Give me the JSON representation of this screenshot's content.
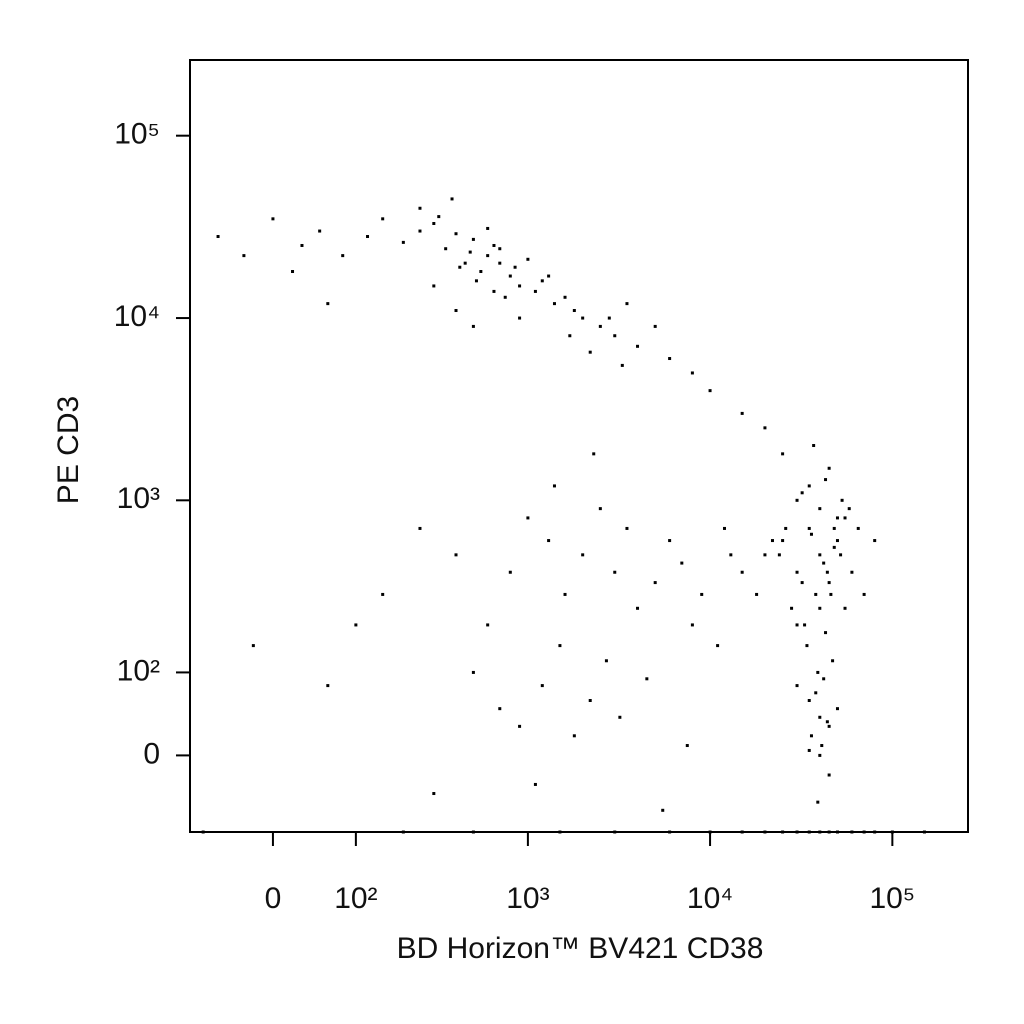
{
  "chart_data": {
    "type": "scatter",
    "scale": "biexponential",
    "x_label": "BD Horizon™ BV421 CD38",
    "y_label": "PE CD3",
    "color": "#000000",
    "xlim": [
      -100,
      260000
    ],
    "ylim": [
      -90,
      260000
    ],
    "xticks": [
      0,
      {
        "value": 100,
        "label": "10²"
      },
      {
        "value": 1000,
        "label": "10³"
      },
      {
        "value": 10000,
        "label": "10⁴"
      },
      {
        "value": 100000,
        "label": "10⁵"
      }
    ],
    "yticks": [
      0,
      {
        "value": 100,
        "label": "10²"
      },
      {
        "value": 1000,
        "label": "10³"
      },
      {
        "value": 10000,
        "label": "10⁴"
      },
      {
        "value": 100000,
        "label": "10⁵"
      }
    ],
    "x": [
      30,
      50,
      80,
      120,
      150,
      200,
      250,
      300,
      350,
      400,
      450,
      500,
      550,
      600,
      650,
      700,
      800,
      900,
      1000,
      1100,
      1200,
      1400,
      1600,
      1800,
      2000,
      2500,
      3000,
      3500,
      4000,
      5000,
      6000,
      8000,
      10000,
      15000,
      20000,
      -60,
      -30,
      0,
      20,
      60,
      250,
      320,
      380,
      420,
      480,
      520,
      600,
      700,
      750,
      850,
      300,
      400,
      500,
      650,
      900,
      1300,
      1700,
      2200,
      2800,
      3300,
      20000,
      25000,
      30000,
      35000,
      40000,
      45000,
      50000,
      55000,
      60000,
      70000,
      30000,
      35000,
      40000,
      45000,
      50000,
      38000,
      42000,
      48000,
      33000,
      28000,
      22000,
      26000,
      32000,
      36000,
      44000,
      52000,
      58000,
      65000,
      40000,
      46000,
      15000,
      18000,
      24000,
      30000,
      34000,
      39000,
      43000,
      47000,
      55000,
      80000,
      30000,
      35000,
      40000,
      45000,
      50000,
      36000,
      41000,
      38000,
      44000,
      42000,
      25000,
      32000,
      37000,
      43000,
      48000,
      53000,
      35000,
      40000,
      45000,
      39000,
      150,
      250,
      400,
      600,
      800,
      1000,
      1300,
      1600,
      2000,
      2500,
      3000,
      3500,
      4000,
      5000,
      6000,
      7000,
      8000,
      9000,
      11000,
      13000,
      500,
      700,
      900,
      1200,
      1500,
      1800,
      2200,
      2700,
      3200,
      4500,
      100,
      -20,
      60,
      300,
      1100,
      1400,
      2300,
      5500,
      7500,
      12000,
      500,
      1500,
      3000,
      6000,
      10000,
      15000,
      20000,
      25000,
      30000,
      35000,
      40000,
      45000,
      50000,
      60000,
      70000,
      80000,
      100000,
      150000,
      -80,
      200
    ],
    "values": [
      25000,
      30000,
      22000,
      28000,
      35000,
      26000,
      30000,
      33000,
      24000,
      29000,
      20000,
      27000,
      18000,
      22000,
      25000,
      20000,
      17000,
      15000,
      21000,
      14000,
      16000,
      12000,
      13000,
      11000,
      10000,
      9000,
      8000,
      12000,
      7000,
      9000,
      6000,
      5000,
      4000,
      3000,
      2500,
      28000,
      22000,
      35000,
      18000,
      12000,
      40000,
      36000,
      45000,
      19000,
      23000,
      16000,
      31000,
      24000,
      13000,
      19000,
      15000,
      11000,
      9000,
      14000,
      10000,
      17000,
      8000,
      6500,
      10000,
      5500,
      500,
      600,
      400,
      700,
      500,
      350,
      600,
      800,
      400,
      300,
      1000,
      1200,
      900,
      1500,
      800,
      300,
      450,
      550,
      200,
      250,
      600,
      700,
      350,
      650,
      400,
      500,
      900,
      700,
      250,
      300,
      400,
      300,
      500,
      200,
      150,
      100,
      180,
      120,
      250,
      600,
      80,
      60,
      40,
      30,
      50,
      20,
      10,
      70,
      35,
      90,
      1800,
      1100,
      2000,
      1300,
      700,
      1000,
      5,
      0,
      -20,
      -50,
      300,
      700,
      500,
      200,
      400,
      800,
      600,
      300,
      500,
      900,
      400,
      700,
      250,
      350,
      600,
      450,
      200,
      300,
      150,
      500,
      100,
      50,
      30,
      80,
      150,
      20,
      60,
      120,
      40,
      90,
      200,
      150,
      80,
      -40,
      -30,
      1200,
      1800,
      -60,
      10,
      700,
      -90,
      -90,
      -90,
      -90,
      -90,
      -90,
      -90,
      -90,
      -90,
      -90,
      -90,
      -90,
      -90,
      -90,
      -90,
      -90,
      -90,
      -90,
      -90,
      -90
    ]
  }
}
